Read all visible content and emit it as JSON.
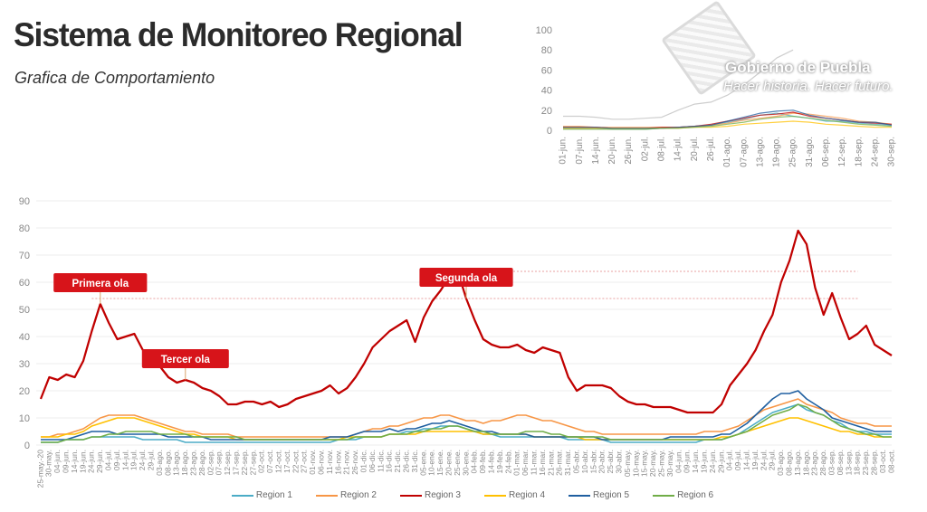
{
  "header": {
    "title": "Sistema de Monitoreo Regional",
    "subtitle": "Grafica de Comportamiento"
  },
  "logo": {
    "name": "Gobierno de Puebla",
    "slogan": "Hacer historia. Hacer futuro."
  },
  "chart_data": [
    {
      "type": "line",
      "title": "",
      "xlabel": "",
      "ylabel": "",
      "ylim": [
        0,
        90
      ],
      "yticks": [
        0,
        10,
        20,
        30,
        40,
        50,
        60,
        70,
        80,
        90
      ],
      "grid": true,
      "legend": "bottom",
      "categories": [
        "25-may.-20",
        "30-may.",
        "04-jun.",
        "09-jun.",
        "14-jun.",
        "19-jun.",
        "24-jun.",
        "29-jun.",
        "04-jul.",
        "09-jul.",
        "14-jul.",
        "19-jul.",
        "24-jul.",
        "29-jul.",
        "03-ago.",
        "08-ago.",
        "13-ago.",
        "18-ago.",
        "23-ago.",
        "28-ago.",
        "02-sep.",
        "07-sep.",
        "12-sep.",
        "17-sep.",
        "22-sep.",
        "27-sep.",
        "02-oct.",
        "07-oct.",
        "12-oct.",
        "17-oct.",
        "22-oct.",
        "27-oct.",
        "01-nov.",
        "06-nov.",
        "11-nov.",
        "16-nov.",
        "21-nov.",
        "26-nov.",
        "01-dic.",
        "06-dic.",
        "11-dic.",
        "16-dic.",
        "21-dic.",
        "26-dic.",
        "31-dic.",
        "05-ene.",
        "10-ene.",
        "15-ene.",
        "20-ene.",
        "25-ene.",
        "30-ene.",
        "04-feb.",
        "09-feb.",
        "14-feb.",
        "19-feb.",
        "24-feb.",
        "01-mar.",
        "06-mar.",
        "11-mar.",
        "16-mar.",
        "21-mar.",
        "26-mar.",
        "31-mar.",
        "05-abr.",
        "10-abr.",
        "15-abr.",
        "20-abr.",
        "25-abr.",
        "30-abr.",
        "05-may.",
        "10-may.",
        "15-may.",
        "20-may.",
        "25-may.",
        "30-may.",
        "04-jun.",
        "09-jun.",
        "14-jun.",
        "19-jun.",
        "24-jun.",
        "29-jun.",
        "04-jul.",
        "09-jul.",
        "14-jul.",
        "19-jul.",
        "24-jul.",
        "29-jul.",
        "03-ago.",
        "08-ago.",
        "13-ago.",
        "18-ago.",
        "23-ago.",
        "28-ago.",
        "03-sep.",
        "08-sep.",
        "13-sep.",
        "18-sep.",
        "23-sep.",
        "28-sep.",
        "03-oct.",
        "08-oct."
      ],
      "series": [
        {
          "name": "Region 1",
          "color": "#4bacc6",
          "values": [
            1,
            1,
            1,
            2,
            2,
            2,
            3,
            3,
            3,
            3,
            3,
            3,
            2,
            2,
            2,
            2,
            2,
            1,
            1,
            1,
            1,
            1,
            1,
            1,
            1,
            1,
            1,
            1,
            1,
            1,
            1,
            1,
            1,
            1,
            1,
            2,
            2,
            2,
            3,
            3,
            3,
            4,
            4,
            5,
            5,
            6,
            6,
            7,
            7,
            7,
            6,
            5,
            4,
            4,
            3,
            3,
            3,
            3,
            3,
            3,
            3,
            3,
            2,
            2,
            2,
            2,
            2,
            1,
            1,
            1,
            1,
            1,
            1,
            1,
            1,
            1,
            1,
            1,
            2,
            2,
            2,
            3,
            4,
            6,
            8,
            10,
            12,
            13,
            14,
            15,
            13,
            12,
            11,
            9,
            8,
            6,
            5,
            5,
            4,
            4,
            4
          ]
        },
        {
          "name": "Region 2",
          "color": "#f79646",
          "values": [
            3,
            3,
            4,
            4,
            5,
            6,
            8,
            10,
            11,
            11,
            11,
            11,
            10,
            9,
            8,
            7,
            6,
            5,
            5,
            4,
            4,
            4,
            4,
            3,
            3,
            3,
            3,
            3,
            3,
            3,
            3,
            3,
            3,
            3,
            3,
            3,
            3,
            4,
            5,
            6,
            6,
            7,
            7,
            8,
            9,
            10,
            10,
            11,
            11,
            10,
            9,
            9,
            8,
            9,
            9,
            10,
            11,
            11,
            10,
            9,
            9,
            8,
            7,
            6,
            5,
            5,
            4,
            4,
            4,
            4,
            4,
            4,
            4,
            4,
            4,
            4,
            4,
            4,
            5,
            5,
            5,
            6,
            7,
            9,
            11,
            13,
            14,
            15,
            16,
            17,
            15,
            14,
            13,
            12,
            10,
            9,
            8,
            8,
            7,
            7,
            7
          ]
        },
        {
          "name": "Region 3",
          "color": "#c00000",
          "values": [
            17,
            25,
            24,
            26,
            25,
            31,
            42,
            52,
            45,
            39,
            40,
            41,
            35,
            34,
            29,
            25,
            23,
            24,
            23,
            21,
            20,
            18,
            15,
            15,
            16,
            16,
            15,
            16,
            14,
            15,
            17,
            18,
            19,
            20,
            22,
            19,
            21,
            25,
            30,
            36,
            39,
            42,
            44,
            46,
            38,
            47,
            53,
            57,
            62,
            64,
            54,
            46,
            39,
            37,
            36,
            36,
            37,
            35,
            34,
            36,
            35,
            34,
            25,
            20,
            22,
            22,
            22,
            21,
            18,
            16,
            15,
            15,
            14,
            14,
            14,
            13,
            12,
            12,
            12,
            12,
            15,
            22,
            26,
            30,
            35,
            42,
            48,
            60,
            68,
            79,
            74,
            58,
            48,
            56,
            47,
            39,
            41,
            44,
            37,
            35,
            33
          ]
        },
        {
          "name": "Region 4",
          "color": "#ffc000",
          "values": [
            3,
            3,
            3,
            4,
            4,
            5,
            7,
            8,
            9,
            10,
            10,
            10,
            9,
            8,
            7,
            6,
            5,
            4,
            4,
            3,
            3,
            3,
            3,
            2,
            2,
            2,
            2,
            2,
            2,
            2,
            2,
            2,
            2,
            2,
            2,
            2,
            3,
            3,
            3,
            3,
            3,
            4,
            4,
            4,
            4,
            5,
            5,
            5,
            5,
            5,
            5,
            5,
            4,
            4,
            4,
            4,
            4,
            4,
            3,
            3,
            3,
            3,
            3,
            3,
            2,
            2,
            2,
            2,
            2,
            2,
            2,
            2,
            2,
            2,
            2,
            2,
            2,
            2,
            2,
            2,
            3,
            3,
            4,
            5,
            6,
            7,
            8,
            9,
            10,
            10,
            9,
            8,
            7,
            6,
            5,
            5,
            4,
            4,
            3,
            3,
            3
          ]
        },
        {
          "name": "Region 5",
          "color": "#1f5fa0",
          "values": [
            2,
            2,
            2,
            2,
            3,
            4,
            5,
            5,
            5,
            4,
            4,
            4,
            4,
            4,
            4,
            3,
            3,
            3,
            3,
            3,
            2,
            2,
            2,
            2,
            2,
            2,
            2,
            2,
            2,
            2,
            2,
            2,
            2,
            2,
            3,
            3,
            3,
            4,
            5,
            5,
            5,
            6,
            5,
            6,
            6,
            7,
            8,
            8,
            9,
            8,
            7,
            6,
            5,
            5,
            4,
            4,
            4,
            4,
            3,
            3,
            3,
            3,
            3,
            3,
            3,
            3,
            2,
            2,
            2,
            2,
            2,
            2,
            2,
            2,
            3,
            3,
            3,
            3,
            3,
            3,
            4,
            4,
            6,
            8,
            11,
            14,
            17,
            19,
            19,
            20,
            17,
            15,
            13,
            10,
            9,
            8,
            7,
            6,
            5,
            5,
            5
          ]
        },
        {
          "name": "Region 6",
          "color": "#70ad47",
          "values": [
            1,
            1,
            1,
            2,
            2,
            2,
            3,
            3,
            4,
            4,
            5,
            5,
            5,
            5,
            4,
            4,
            4,
            4,
            3,
            3,
            3,
            3,
            3,
            3,
            2,
            2,
            2,
            2,
            2,
            2,
            2,
            2,
            2,
            2,
            2,
            2,
            2,
            3,
            3,
            3,
            3,
            4,
            4,
            4,
            5,
            5,
            6,
            6,
            7,
            7,
            6,
            5,
            5,
            4,
            4,
            4,
            4,
            5,
            5,
            5,
            4,
            4,
            3,
            3,
            3,
            3,
            3,
            2,
            2,
            2,
            2,
            2,
            2,
            2,
            2,
            2,
            2,
            2,
            2,
            2,
            2,
            3,
            4,
            5,
            7,
            9,
            11,
            12,
            13,
            15,
            14,
            12,
            11,
            9,
            7,
            6,
            5,
            4,
            4,
            3,
            3
          ]
        }
      ],
      "reference_lines": [
        {
          "value": 54,
          "from": "24-jun.",
          "to": "18-sep.",
          "color": "#e8a0a0"
        },
        {
          "value": 64,
          "from": "30-ene.",
          "to": "18-sep.",
          "color": "#e8a0a0"
        }
      ],
      "annotations": [
        {
          "label": "Primera ola",
          "at": "29-jun.",
          "color": "#d7141a"
        },
        {
          "label": "Segunda ola",
          "at": "30-ene.",
          "color": "#d7141a"
        },
        {
          "label": "Tercer ola",
          "at": "18-ago.",
          "color": "#d7141a"
        }
      ]
    },
    {
      "type": "line",
      "title": "",
      "ylim": [
        0,
        100
      ],
      "yticks": [
        0,
        20,
        40,
        60,
        80,
        100
      ],
      "grid": false,
      "categories": [
        "01-jun.",
        "07-jun.",
        "14-jun.",
        "20-jun.",
        "26-jun.",
        "02-jul.",
        "08-jul.",
        "14-jul.",
        "20-jul.",
        "26-jul.",
        "01-ago.",
        "07-ago.",
        "13-ago.",
        "19-ago.",
        "25-ago.",
        "31-ago.",
        "06-sep.",
        "12-sep.",
        "18-sep.",
        "24-sep.",
        "30-sep."
      ],
      "series": [
        {
          "color": "#bdbdbd",
          "values": [
            14,
            14,
            13,
            11,
            11,
            12,
            13,
            20,
            26,
            28,
            35,
            45,
            58,
            72,
            80,
            null,
            null,
            null,
            null,
            null,
            null
          ]
        },
        {
          "color": "#4bacc6",
          "values": [
            2,
            2,
            2,
            1,
            1,
            1,
            2,
            3,
            4,
            5,
            8,
            11,
            15,
            17,
            14,
            12,
            9,
            9,
            7,
            6,
            5
          ]
        },
        {
          "color": "#f79646",
          "values": [
            4,
            4,
            3,
            3,
            3,
            3,
            3,
            3,
            4,
            5,
            7,
            10,
            12,
            14,
            17,
            16,
            14,
            12,
            9,
            8,
            6
          ]
        },
        {
          "color": "#c00000",
          "values": [
            3,
            3,
            3,
            2,
            2,
            2,
            3,
            3,
            4,
            6,
            9,
            12,
            15,
            16,
            18,
            14,
            12,
            10,
            8,
            7,
            6
          ]
        },
        {
          "color": "#ffc000",
          "values": [
            2,
            2,
            2,
            2,
            2,
            2,
            2,
            2,
            3,
            3,
            4,
            6,
            7,
            8,
            9,
            8,
            6,
            5,
            4,
            3,
            3
          ]
        },
        {
          "color": "#1f5fa0",
          "values": [
            3,
            3,
            3,
            2,
            2,
            2,
            2,
            3,
            4,
            5,
            9,
            13,
            17,
            19,
            20,
            15,
            12,
            10,
            8,
            8,
            5
          ]
        },
        {
          "color": "#70ad47",
          "values": [
            1,
            1,
            1,
            1,
            1,
            1,
            2,
            2,
            3,
            4,
            6,
            8,
            11,
            13,
            14,
            12,
            10,
            8,
            6,
            5,
            4
          ]
        }
      ]
    }
  ]
}
